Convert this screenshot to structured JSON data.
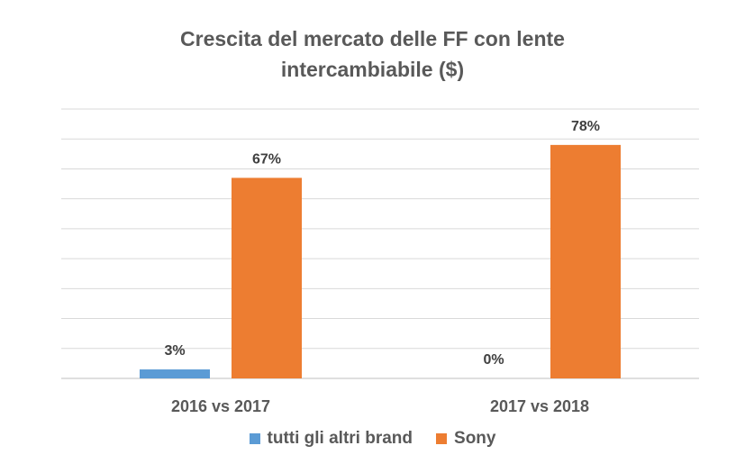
{
  "chart_data": {
    "type": "bar",
    "title_lines": [
      "Crescita del mercato delle FF con lente",
      "intercambiabile ($)"
    ],
    "categories": [
      "2016 vs 2017",
      "2017 vs 2018"
    ],
    "series": [
      {
        "name": "tutti gli altri brand",
        "values": [
          3,
          0
        ],
        "labels": [
          "3%",
          "0%"
        ],
        "color": "#5B9BD5"
      },
      {
        "name": "Sony",
        "values": [
          67,
          78
        ],
        "labels": [
          "67%",
          "78%"
        ],
        "color": "#ED7D31"
      }
    ],
    "ylim": [
      0,
      90
    ],
    "grid": true,
    "legend_position": "bottom"
  }
}
